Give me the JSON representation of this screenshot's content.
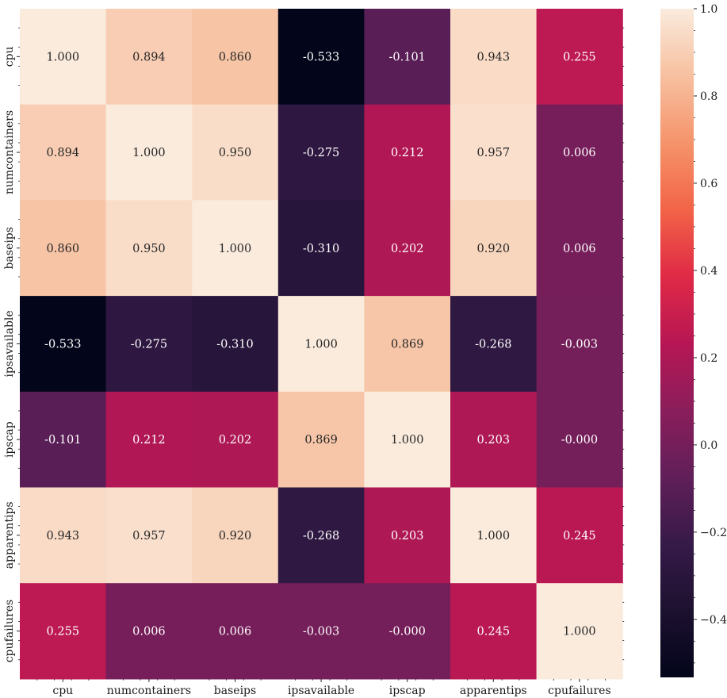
{
  "chart_data": {
    "type": "heatmap",
    "title": "",
    "xlabel": "",
    "ylabel": "",
    "x_labels": [
      "cpu",
      "numcontainers",
      "baseips",
      "ipsavailable",
      "ipscap",
      "apparentips",
      "cpufailures"
    ],
    "y_labels": [
      "cpu",
      "numcontainers",
      "baseips",
      "ipsavailable",
      "ipscap",
      "apparentips",
      "cpufailures"
    ],
    "values": [
      [
        1.0,
        0.894,
        0.86,
        -0.533,
        -0.101,
        0.943,
        0.255
      ],
      [
        0.894,
        1.0,
        0.95,
        -0.275,
        0.212,
        0.957,
        0.006
      ],
      [
        0.86,
        0.95,
        1.0,
        -0.31,
        0.202,
        0.92,
        0.006
      ],
      [
        -0.533,
        -0.275,
        -0.31,
        1.0,
        0.869,
        -0.268,
        -0.003
      ],
      [
        -0.101,
        0.212,
        0.202,
        0.869,
        1.0,
        0.203,
        -0.0
      ],
      [
        0.943,
        0.957,
        0.92,
        -0.268,
        0.203,
        1.0,
        0.245
      ],
      [
        0.255,
        0.006,
        0.006,
        -0.003,
        -0.0,
        0.245,
        1.0
      ]
    ],
    "annotations": [
      [
        "1.000",
        "0.894",
        "0.860",
        "-0.533",
        "-0.101",
        "0.943",
        "0.255"
      ],
      [
        "0.894",
        "1.000",
        "0.950",
        "-0.275",
        "0.212",
        "0.957",
        "0.006"
      ],
      [
        "0.860",
        "0.950",
        "1.000",
        "-0.310",
        "0.202",
        "0.920",
        "0.006"
      ],
      [
        "-0.533",
        "-0.275",
        "-0.310",
        "1.000",
        "0.869",
        "-0.268",
        "-0.003"
      ],
      [
        "-0.101",
        "0.212",
        "0.202",
        "0.869",
        "1.000",
        "0.203",
        "-0.000"
      ],
      [
        "0.943",
        "0.957",
        "0.920",
        "-0.268",
        "0.203",
        "1.000",
        "0.245"
      ],
      [
        "0.255",
        "0.006",
        "0.006",
        "-0.003",
        "-0.000",
        "0.245",
        "1.000"
      ]
    ],
    "colormap": "rocket",
    "color_range": [
      -0.533,
      1.0
    ],
    "colorbar": {
      "ticks": [
        -0.4,
        -0.2,
        0.0,
        0.2,
        0.4,
        0.6,
        0.8,
        1.0
      ],
      "tick_labels": [
        "−0.4",
        "−0.2",
        "0.0",
        "0.2",
        "0.4",
        "0.6",
        "0.8",
        "1.0"
      ],
      "position": "right"
    },
    "grid": false,
    "legend": "none"
  }
}
